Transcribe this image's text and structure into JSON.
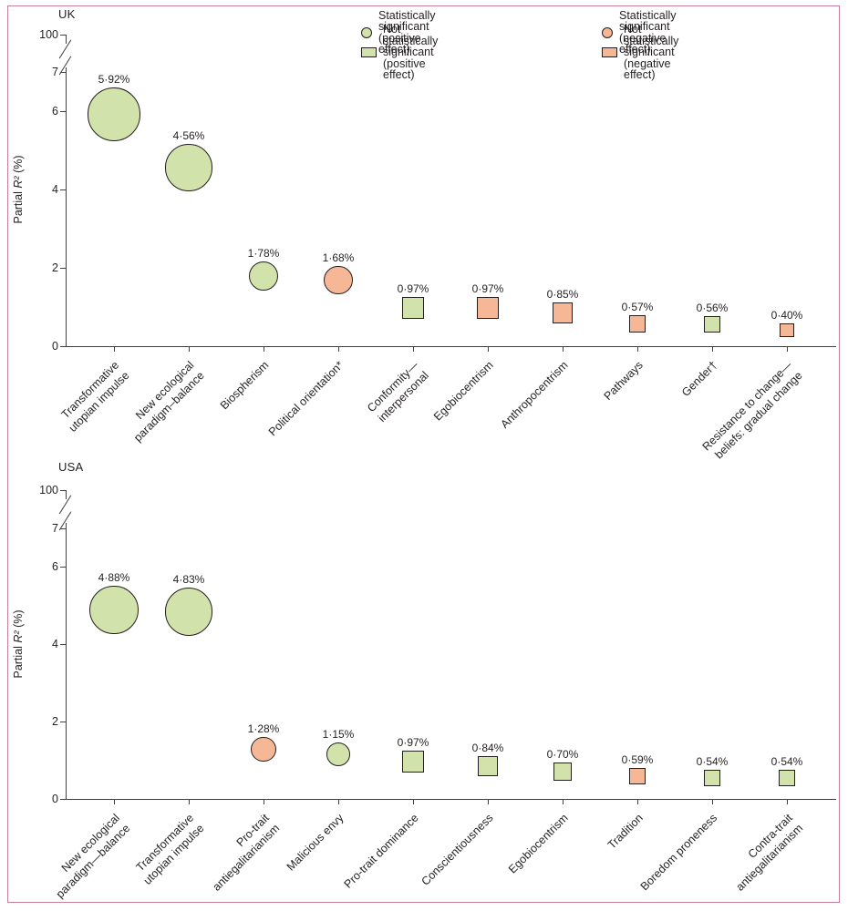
{
  "figure": {
    "frame_color": "#c57f9b",
    "background": "#ffffff"
  },
  "colors": {
    "positive_fill": "#d2e2ab",
    "negative_fill": "#f5b795",
    "stroke": "#231f20",
    "axis": "#3f4042",
    "text": "#231f20"
  },
  "legend": {
    "columns": [
      [
        {
          "shape": "circle",
          "effect": "positive",
          "label": "Statistically significant (positive effect)"
        },
        {
          "shape": "square",
          "effect": "positive",
          "label": "Not statistically significant (positive effect)"
        }
      ],
      [
        {
          "shape": "circle",
          "effect": "negative",
          "label": "Statistically significant (negative effect)"
        },
        {
          "shape": "square",
          "effect": "negative",
          "label": "Not statistically significant (negative effect)"
        }
      ]
    ]
  },
  "chart_data": [
    {
      "type": "bubble",
      "title": "UK",
      "ylabel": "Partial R² (%)",
      "ylabel_parts": [
        "Partial ",
        "R²",
        " (%)"
      ],
      "yticks": [
        0,
        2,
        4,
        6,
        7
      ],
      "y_break_top_label": "100",
      "axis_break": true,
      "ylim": [
        0,
        7
      ],
      "grid": false,
      "legend_position": "top",
      "categories": [
        "Transformative\nutopian impulse",
        "New ecological\nparadigm–balance",
        "Biospherism",
        "Political orientation*",
        "Conformity—\ninterpersonal",
        "Egobiocentrism",
        "Anthropocentrism",
        "Pathways",
        "Gender†",
        "Resistance to change—\nbeliefs: gradual change"
      ],
      "points": [
        {
          "value": 5.92,
          "label": "5·92%",
          "significant": true,
          "effect": "positive"
        },
        {
          "value": 4.56,
          "label": "4·56%",
          "significant": true,
          "effect": "positive"
        },
        {
          "value": 1.78,
          "label": "1·78%",
          "significant": true,
          "effect": "positive"
        },
        {
          "value": 1.68,
          "label": "1·68%",
          "significant": true,
          "effect": "negative"
        },
        {
          "value": 0.97,
          "label": "0·97%",
          "significant": false,
          "effect": "positive"
        },
        {
          "value": 0.97,
          "label": "0·97%",
          "significant": false,
          "effect": "negative"
        },
        {
          "value": 0.85,
          "label": "0·85%",
          "significant": false,
          "effect": "negative"
        },
        {
          "value": 0.57,
          "label": "0·57%",
          "significant": false,
          "effect": "negative"
        },
        {
          "value": 0.56,
          "label": "0·56%",
          "significant": false,
          "effect": "positive"
        },
        {
          "value": 0.4,
          "label": "0·40%",
          "significant": false,
          "effect": "negative"
        }
      ]
    },
    {
      "type": "bubble",
      "title": "USA",
      "ylabel": "Partial R² (%)",
      "ylabel_parts": [
        "Partial ",
        "R²",
        " (%)"
      ],
      "yticks": [
        0,
        2,
        4,
        6,
        7
      ],
      "y_break_top_label": "100",
      "axis_break": true,
      "ylim": [
        0,
        7
      ],
      "grid": false,
      "legend_position": "none",
      "categories": [
        "New ecological\nparadigm—balance",
        "Transformative\nutopian impulse",
        "Pro-trait\nantiegalitarianism",
        "Malicious envy",
        "Pro-trait dominance",
        "Conscientiousness",
        "Egobiocentrism",
        "Tradition",
        "Boredom proneness",
        "Contra-trait\nantiegalitarianism"
      ],
      "points": [
        {
          "value": 4.88,
          "label": "4·88%",
          "significant": true,
          "effect": "positive"
        },
        {
          "value": 4.83,
          "label": "4·83%",
          "significant": true,
          "effect": "positive"
        },
        {
          "value": 1.28,
          "label": "1·28%",
          "significant": true,
          "effect": "negative"
        },
        {
          "value": 1.15,
          "label": "1·15%",
          "significant": true,
          "effect": "positive"
        },
        {
          "value": 0.97,
          "label": "0·97%",
          "significant": false,
          "effect": "positive"
        },
        {
          "value": 0.84,
          "label": "0·84%",
          "significant": false,
          "effect": "positive"
        },
        {
          "value": 0.7,
          "label": "0·70%",
          "significant": false,
          "effect": "positive"
        },
        {
          "value": 0.59,
          "label": "0·59%",
          "significant": false,
          "effect": "negative"
        },
        {
          "value": 0.54,
          "label": "0·54%",
          "significant": false,
          "effect": "positive"
        },
        {
          "value": 0.54,
          "label": "0·54%",
          "significant": false,
          "effect": "positive"
        }
      ]
    }
  ]
}
